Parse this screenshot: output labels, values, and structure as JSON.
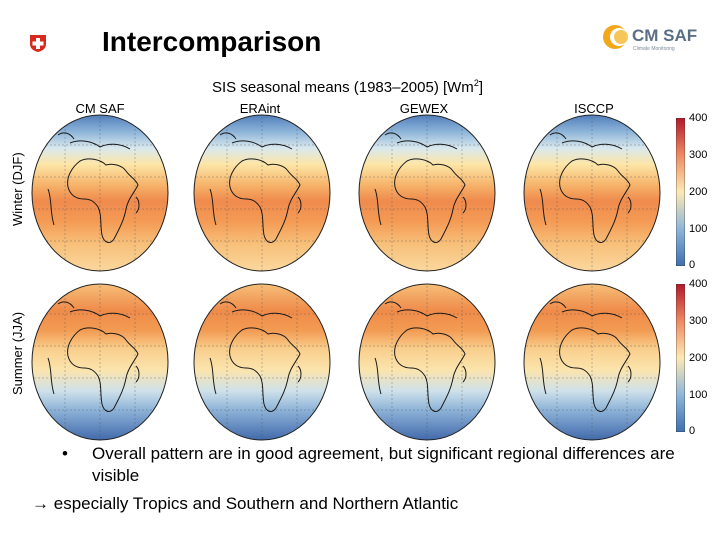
{
  "slide": {
    "title": "Intercomparison"
  },
  "logos": {
    "cmsaf_text": "CM SAF",
    "cmsaf_sub": "Climate Monitoring"
  },
  "figure": {
    "title_text": "SIS seasonal means (1983–2005) [Wm",
    "title_sup": "2",
    "title_end": "]",
    "columns": [
      "CM SAF",
      "ERAint",
      "GEWEX",
      "ISCCP"
    ],
    "rows": [
      "Winter (DJF)",
      "Summer (JJA)"
    ],
    "colorbar_ticks": [
      "400",
      "300",
      "200",
      "100",
      "0"
    ],
    "colors": {
      "high": "#c0392b",
      "mid": "#fce8b0",
      "low": "#3e6fb0"
    }
  },
  "bullets": {
    "bullet_symbol": "•",
    "line1": "Overall pattern are in good agreement, but significant regional differences are visible",
    "line2": "especially Tropics and Southern and Northern Atlantic",
    "arrow_symbol": "→"
  }
}
